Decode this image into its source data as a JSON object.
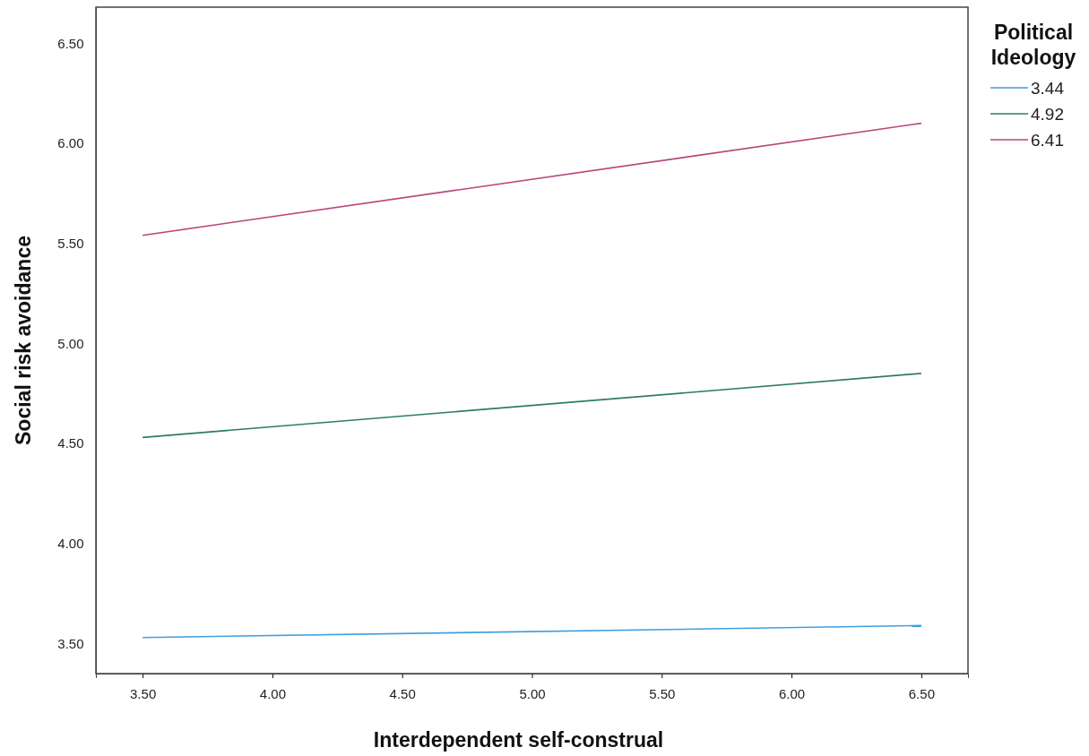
{
  "chart_data": {
    "type": "line",
    "xlabel": "Interdependent self-construal",
    "ylabel": "Social risk avoidance",
    "legend_title": "Political Ideology",
    "x": [
      3.5,
      6.5
    ],
    "series": [
      {
        "name": "3.44",
        "color": "#3d9fe0",
        "values": [
          3.53,
          3.59
        ]
      },
      {
        "name": "4.92",
        "color": "#2e7a6c",
        "values": [
          4.53,
          4.85
        ]
      },
      {
        "name": "6.41",
        "color": "#b8467c",
        "values": [
          5.54,
          6.1
        ]
      }
    ],
    "xlim": [
      3.32,
      6.68
    ],
    "ylim": [
      3.35,
      6.68
    ],
    "xticks": [
      {
        "value": 3.5,
        "label": "3.50"
      },
      {
        "value": 4,
        "label": "4.00"
      },
      {
        "value": 4.5,
        "label": "4.50"
      },
      {
        "value": 5,
        "label": "5.00"
      },
      {
        "value": 5.5,
        "label": "5.50"
      },
      {
        "value": 6,
        "label": "6.00"
      },
      {
        "value": 6.5,
        "label": "6.50"
      }
    ],
    "yticks": [
      {
        "value": 3.5,
        "label": "3.50"
      },
      {
        "value": 4,
        "label": "4.00"
      },
      {
        "value": 4.5,
        "label": "4.50"
      },
      {
        "value": 5,
        "label": "5.00"
      },
      {
        "value": 5.5,
        "label": "5.50"
      },
      {
        "value": 6,
        "label": "6.00"
      },
      {
        "value": 6.5,
        "label": "6.50"
      }
    ],
    "grid": false,
    "legend": "top right",
    "marker": "none",
    "line_style": "solid"
  }
}
